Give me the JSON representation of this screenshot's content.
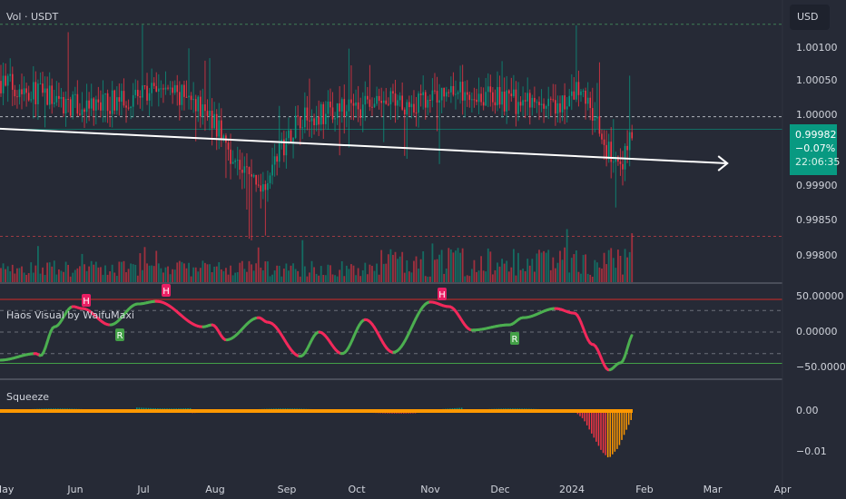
{
  "header": {
    "volume_label": "Vol · USDT"
  },
  "price_axis": {
    "currency_button": "USD",
    "ticks": [
      "1.00100",
      "1.00050",
      "1.00000",
      "0.99900",
      "0.99850",
      "0.99800"
    ],
    "last_price": "0.99982",
    "change": "−0.07%",
    "countdown": "22:06:35"
  },
  "oscillator_pane": {
    "title": "Haos Visual by WaifuMaxi",
    "ticks": [
      "50.00000",
      "0.00000",
      "−50.00000"
    ],
    "markers": [
      "H",
      "H",
      "R",
      "H",
      "R"
    ]
  },
  "squeeze_pane": {
    "title": "Squeeze",
    "ticks": [
      "0.00",
      "−0.01"
    ]
  },
  "time_axis": {
    "ticks": [
      "May",
      "Jun",
      "Jul",
      "Aug",
      "Sep",
      "Oct",
      "Nov",
      "Dec",
      "2024",
      "Feb",
      "Mar",
      "Apr"
    ]
  },
  "colors": {
    "background": "#262a36",
    "up": "#089981",
    "down": "#f23645",
    "osc_up": "#4caf50",
    "osc_down": "#f2295b",
    "squeeze_line": "#ff9800",
    "trendline": "#ffffff"
  },
  "chart_data": [
    {
      "type": "candlestick",
      "title": "",
      "y_axis": {
        "range": [
          0.9977,
          1.0013
        ]
      },
      "close_path": [
        [
          "2023-05-01",
          1.0005
        ],
        [
          "2023-05-20",
          1.0003
        ],
        [
          "2023-06-05",
          1.0001
        ],
        [
          "2023-06-25",
          1.0003
        ],
        [
          "2023-07-10",
          1.0004
        ],
        [
          "2023-07-28",
          1.0001
        ],
        [
          "2023-08-10",
          0.9993
        ],
        [
          "2023-08-20",
          0.999
        ],
        [
          "2023-09-05",
          1.0
        ],
        [
          "2023-09-25",
          1.0001
        ],
        [
          "2023-10-10",
          1.0002
        ],
        [
          "2023-10-28",
          1.0002
        ],
        [
          "2023-11-10",
          1.0004
        ],
        [
          "2023-11-25",
          1.0003
        ],
        [
          "2023-12-10",
          1.0002
        ],
        [
          "2023-12-25",
          1.0001
        ],
        [
          "2024-01-05",
          1.0004
        ],
        [
          "2024-01-15",
          0.9996
        ],
        [
          "2024-01-22",
          0.9992
        ],
        [
          "2024-01-27",
          0.99982
        ]
      ],
      "trendline": [
        [
          "2023-04-28",
          0.99983
        ],
        [
          "2024-03-08",
          0.99933
        ]
      ],
      "horizontal_levels": [
        1.00133,
        1.0,
        0.99828
      ]
    },
    {
      "type": "line",
      "title": "Haos Visual by WaifuMaxi",
      "y_axis": {
        "range": [
          -65,
          65
        ],
        "levels": [
          50,
          33,
          0,
          -33,
          -48
        ]
      },
      "x": [
        "2023-04-29",
        "2023-05-15",
        "2023-05-17",
        "2023-05-23",
        "2023-05-31",
        "2023-06-04",
        "2023-06-16",
        "2023-06-28",
        "2023-07-06",
        "2023-07-26",
        "2023-07-30",
        "2023-08-05",
        "2023-08-19",
        "2023-08-23",
        "2023-09-06",
        "2023-09-14",
        "2023-09-24",
        "2023-10-04",
        "2023-10-16",
        "2023-11-01",
        "2023-11-09",
        "2023-11-19",
        "2023-12-05",
        "2023-12-11",
        "2023-12-25",
        "2024-01-02",
        "2024-01-10",
        "2024-01-17",
        "2024-01-22",
        "2024-01-28"
      ],
      "values": [
        -43,
        -33,
        -36,
        8,
        39,
        36,
        11,
        43,
        47,
        8,
        11,
        -12,
        22,
        15,
        -37,
        0,
        -33,
        19,
        -31,
        46,
        39,
        3,
        11,
        22,
        36,
        29,
        -19,
        -58,
        -47,
        -1
      ]
    },
    {
      "type": "bar",
      "title": "Squeeze",
      "y_axis": {
        "range": [
          -0.013,
          0.002
        ]
      },
      "x": [
        "2024-01-02",
        "2024-01-06",
        "2024-01-10",
        "2024-01-14",
        "2024-01-17",
        "2024-01-21",
        "2024-01-25",
        "2024-01-28"
      ],
      "values": [
        0.0,
        -0.002,
        -0.006,
        -0.01,
        -0.0116,
        -0.009,
        -0.004,
        -0.0005
      ]
    }
  ]
}
